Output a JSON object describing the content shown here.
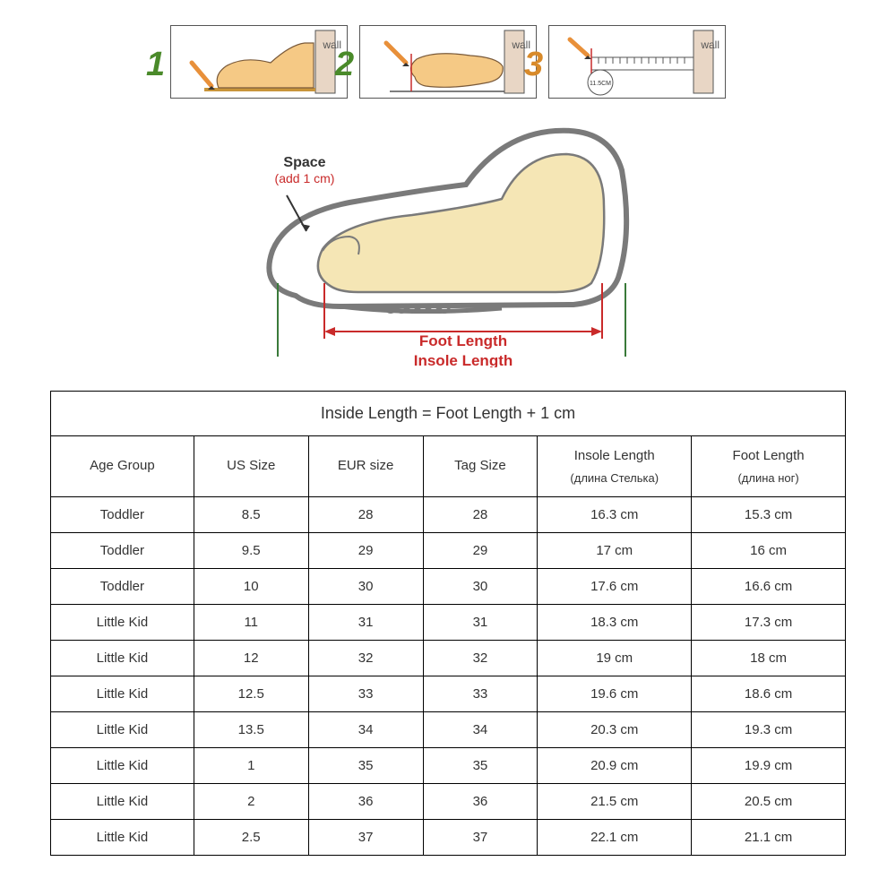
{
  "steps": {
    "wall_label": "wall",
    "num1": "1",
    "num2": "2",
    "num3": "3",
    "ruler_value": "11.5CM",
    "colors": {
      "foot_fill": "#f5c985",
      "foot_stroke": "#7a5a3a",
      "pencil_body": "#e8903a",
      "pencil_tip": "#333333",
      "wall_fill": "#e8d6c5",
      "wall_stroke": "#555555",
      "base_line": "#555555"
    }
  },
  "shoe": {
    "space_label": "Space",
    "space_sub": "(add 1 cm)",
    "foot_length_label": "Foot Length",
    "insole_length_label": "Insole Length",
    "colors": {
      "sole_stroke": "#7a7a7a",
      "sole_fill": "#ffffff",
      "foot_fill": "#f5e6b5",
      "foot_stroke": "#7a7a7a",
      "foot_line": "#c92a2a",
      "insole_line": "#3a7a3a",
      "label_red": "#c92a2a",
      "label_black": "#333333"
    }
  },
  "table": {
    "title": "Inside Length = Foot Length + 1 cm",
    "columns": {
      "age": "Age Group",
      "us": "US Size",
      "eur": "EUR size",
      "tag": "Tag Size",
      "insole": "Insole Length",
      "insole_sub": "(длина  Стелька)",
      "foot": "Foot Length",
      "foot_sub": "(длина  ног)"
    },
    "rows": [
      {
        "age": "Toddler",
        "us": "8.5",
        "eur": "28",
        "tag": "28",
        "insole": "16.3 cm",
        "foot": "15.3 cm"
      },
      {
        "age": "Toddler",
        "us": "9.5",
        "eur": "29",
        "tag": "29",
        "insole": "17 cm",
        "foot": "16 cm"
      },
      {
        "age": "Toddler",
        "us": "10",
        "eur": "30",
        "tag": "30",
        "insole": "17.6 cm",
        "foot": "16.6 cm"
      },
      {
        "age": "Little Kid",
        "us": "11",
        "eur": "31",
        "tag": "31",
        "insole": "18.3 cm",
        "foot": "17.3 cm"
      },
      {
        "age": "Little Kid",
        "us": "12",
        "eur": "32",
        "tag": "32",
        "insole": "19 cm",
        "foot": "18 cm"
      },
      {
        "age": "Little Kid",
        "us": "12.5",
        "eur": "33",
        "tag": "33",
        "insole": "19.6 cm",
        "foot": "18.6 cm"
      },
      {
        "age": "Little Kid",
        "us": "13.5",
        "eur": "34",
        "tag": "34",
        "insole": "20.3 cm",
        "foot": "19.3 cm"
      },
      {
        "age": "Little Kid",
        "us": "1",
        "eur": "35",
        "tag": "35",
        "insole": "20.9 cm",
        "foot": "19.9 cm"
      },
      {
        "age": "Little Kid",
        "us": "2",
        "eur": "36",
        "tag": "36",
        "insole": "21.5 cm",
        "foot": "20.5 cm"
      },
      {
        "age": "Little Kid",
        "us": "2.5",
        "eur": "37",
        "tag": "37",
        "insole": "22.1 cm",
        "foot": "21.1 cm"
      }
    ]
  }
}
